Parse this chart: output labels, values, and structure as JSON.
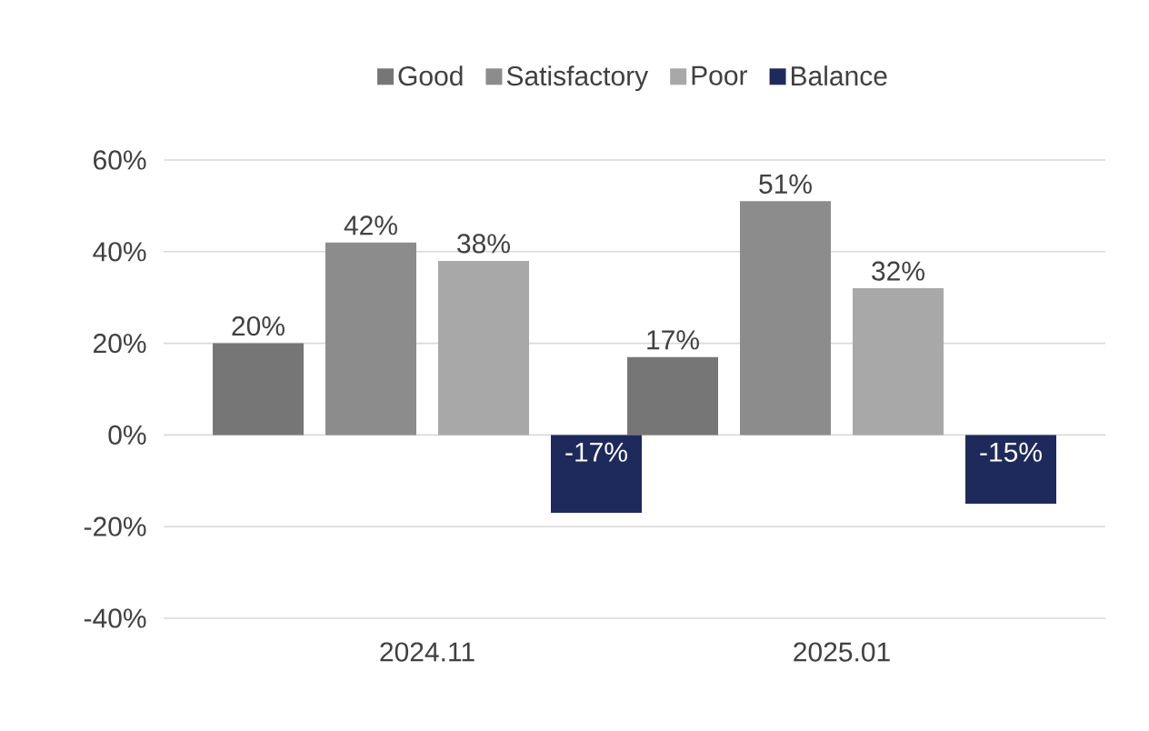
{
  "chart_data": {
    "type": "bar",
    "categories": [
      "2024.11",
      "2025.01"
    ],
    "series": [
      {
        "name": "Good",
        "color": "#767676",
        "values": [
          20,
          17
        ],
        "value_labels": [
          "20%",
          "17%"
        ]
      },
      {
        "name": "Satisfactory",
        "color": "#8c8c8c",
        "values": [
          42,
          51
        ],
        "value_labels": [
          "42%",
          "51%"
        ]
      },
      {
        "name": "Poor",
        "color": "#a8a8a8",
        "values": [
          38,
          32
        ],
        "value_labels": [
          "38%",
          "32%"
        ]
      },
      {
        "name": "Balance",
        "color": "#1f2a5c",
        "values": [
          -17,
          -15
        ],
        "value_labels": [
          "-17%",
          "-15%"
        ]
      }
    ],
    "ylim": [
      -40,
      60
    ],
    "yticks": [
      {
        "value": -40,
        "label": "-40%"
      },
      {
        "value": -20,
        "label": "-20%"
      },
      {
        "value": 0,
        "label": "0%"
      },
      {
        "value": 20,
        "label": "20%"
      },
      {
        "value": 40,
        "label": "40%"
      },
      {
        "value": 60,
        "label": "60%"
      }
    ],
    "grid": "y",
    "legend": "top"
  }
}
